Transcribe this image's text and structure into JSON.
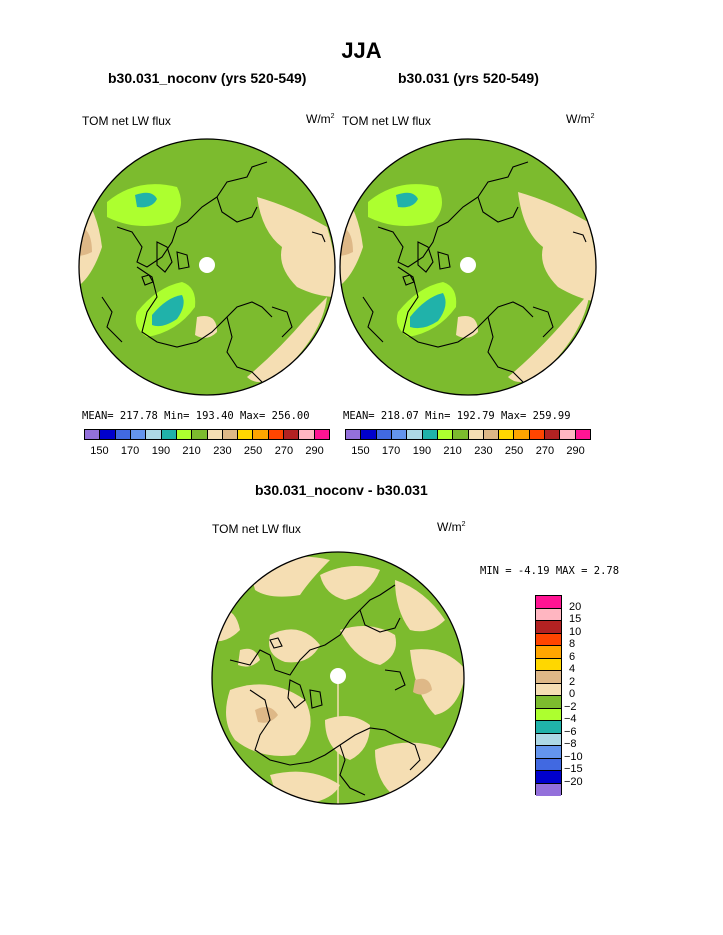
{
  "title": "JJA",
  "panels": [
    {
      "id": "left",
      "subtitle": "b30.031_noconv (yrs 520-549)",
      "variable": "TOM net LW flux",
      "units": "W/m",
      "units_sup": "2",
      "stats": "MEAN= 217.78  Min= 193.40  Max= 256.00"
    },
    {
      "id": "right",
      "subtitle": "b30.031 (yrs 520-549)",
      "variable": "TOM net LW flux",
      "units": "W/m",
      "units_sup": "2",
      "stats": "MEAN= 218.07  Min= 192.79  Max= 259.99"
    }
  ],
  "diff_panel": {
    "subtitle": "b30.031_noconv - b30.031",
    "variable": "TOM net LW flux",
    "units": "W/m",
    "units_sup": "2",
    "minmax": "MIN =  -4.19  MAX =    2.78"
  },
  "colorbar_abs": {
    "colors": [
      "#9370db",
      "#0000cd",
      "#4169e1",
      "#6495ed",
      "#add8e6",
      "#20b2aa",
      "#adff2f",
      "#7cbb2e",
      "#f5deb3",
      "#deb887",
      "#ffd700",
      "#ffa500",
      "#ff4500",
      "#b22222",
      "#ffb6c1",
      "#ff1493"
    ],
    "tick_labels": [
      "150",
      "170",
      "190",
      "210",
      "230",
      "250",
      "270",
      "290"
    ]
  },
  "colorbar_diff": {
    "colors_top_to_bottom": [
      "#ff1493",
      "#ffb6c1",
      "#b22222",
      "#ff4500",
      "#ffa500",
      "#ffd700",
      "#deb887",
      "#f5deb3",
      "#7cbb2e",
      "#adff2f",
      "#20b2aa",
      "#add8e6",
      "#6495ed",
      "#4169e1",
      "#0000cd",
      "#9370db"
    ],
    "tick_labels_top_to_bottom": [
      "20",
      "15",
      "10",
      "8",
      "6",
      "4",
      "2",
      "0",
      "−2",
      "−4",
      "−6",
      "−8",
      "−10",
      "−15",
      "−20"
    ]
  }
}
